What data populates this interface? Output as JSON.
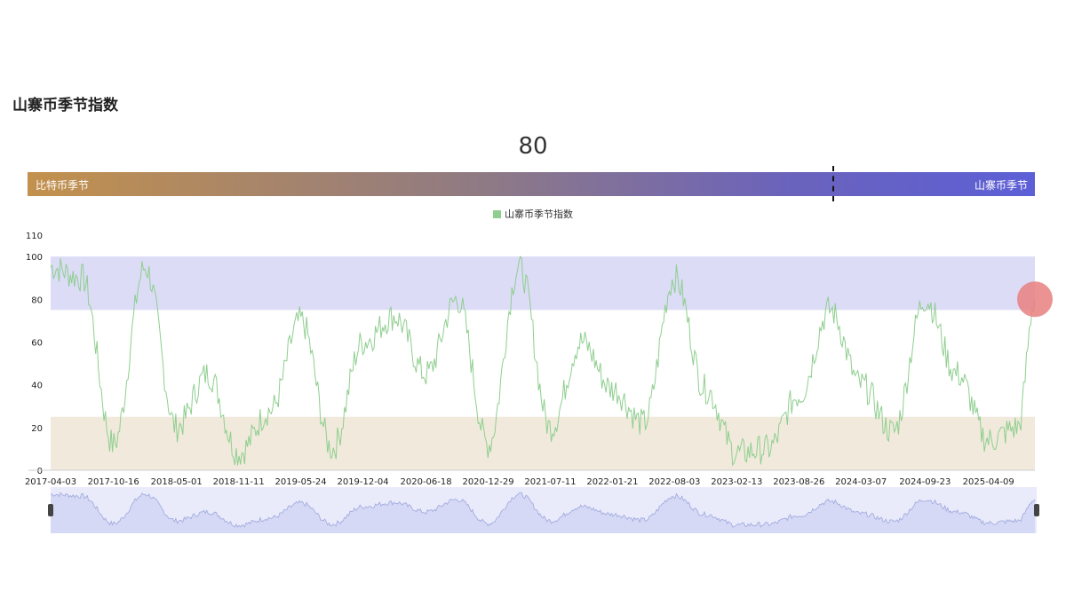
{
  "title": "山寨币季节指数",
  "current_value": "80",
  "gauge": {
    "left_label": "比特币季节",
    "right_label": "山寨币季节",
    "value": 80,
    "min": 0,
    "max": 100
  },
  "legend": "山寨币季节指数",
  "colors": {
    "line": "#8fce8f",
    "altcoin_band": "#dcdcf7",
    "bitcoin_band": "#f1eadc",
    "highlight": "#e88080"
  },
  "chart_data": {
    "type": "line",
    "series": [
      {
        "name": "山寨币季节指数",
        "x": [
          "2017-04-03",
          "2017-07-10",
          "2017-10-16",
          "2018-01-23",
          "2018-05-01",
          "2018-08-07",
          "2018-11-11",
          "2019-02-18",
          "2019-05-24",
          "2019-08-30",
          "2019-12-04",
          "2020-03-11",
          "2020-06-18",
          "2020-09-23",
          "2020-12-29",
          "2021-04-05",
          "2021-07-11",
          "2021-10-16",
          "2022-01-21",
          "2022-04-28",
          "2022-08-03",
          "2022-11-08",
          "2023-02-13",
          "2023-05-21",
          "2023-08-26",
          "2023-12-01",
          "2024-03-07",
          "2024-06-15",
          "2024-09-23",
          "2025-01-01",
          "2025-04-09",
          "2025-07-10",
          "2025-09-01"
        ],
        "values": [
          95,
          90,
          12,
          95,
          20,
          45,
          8,
          28,
          70,
          10,
          60,
          72,
          45,
          80,
          12,
          95,
          20,
          60,
          38,
          22,
          90,
          38,
          8,
          10,
          35,
          75,
          40,
          18,
          80,
          45,
          14,
          20,
          80
        ]
      }
    ],
    "xticks": [
      "2017-04-03",
      "2017-10-16",
      "2018-05-01",
      "2018-11-11",
      "2019-05-24",
      "2019-12-04",
      "2020-06-18",
      "2020-12-29",
      "2021-07-11",
      "2022-01-21",
      "2022-08-03",
      "2023-02-13",
      "2023-08-26",
      "2024-03-07",
      "2024-09-23",
      "2025-04-09"
    ],
    "yticks": [
      "0",
      "20",
      "40",
      "60",
      "80",
      "100",
      "110"
    ],
    "ylim": [
      0,
      110
    ],
    "bands": [
      {
        "label": "山寨币季节",
        "from": 75,
        "to": 100
      },
      {
        "label": "比特币季节",
        "from": 0,
        "to": 25
      }
    ],
    "grid": false,
    "legend_position": "top-center"
  }
}
